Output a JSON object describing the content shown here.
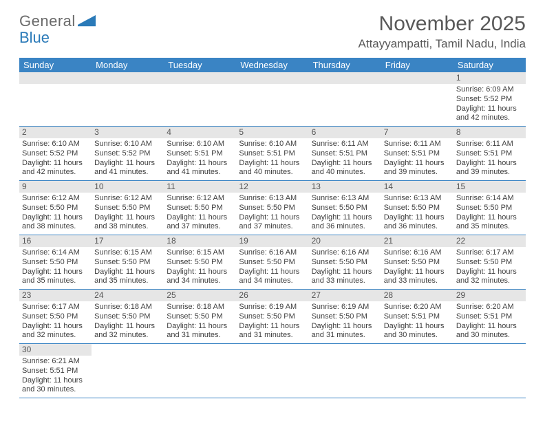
{
  "logo": {
    "word1": "General",
    "word2": "Blue"
  },
  "title": "November 2025",
  "location": "Attayyampatti, Tamil Nadu, India",
  "colors": {
    "header_bg": "#3a84c4",
    "header_text": "#ffffff",
    "daynum_bg": "#e6e6e6",
    "border": "#3a84c4",
    "title_color": "#595959",
    "body_text": "#404040"
  },
  "weekdays": [
    "Sunday",
    "Monday",
    "Tuesday",
    "Wednesday",
    "Thursday",
    "Friday",
    "Saturday"
  ],
  "first_weekday_index": 6,
  "days": [
    {
      "n": "1",
      "sr": "6:09 AM",
      "ss": "5:52 PM",
      "dl": "11 hours and 42 minutes."
    },
    {
      "n": "2",
      "sr": "6:10 AM",
      "ss": "5:52 PM",
      "dl": "11 hours and 42 minutes."
    },
    {
      "n": "3",
      "sr": "6:10 AM",
      "ss": "5:52 PM",
      "dl": "11 hours and 41 minutes."
    },
    {
      "n": "4",
      "sr": "6:10 AM",
      "ss": "5:51 PM",
      "dl": "11 hours and 41 minutes."
    },
    {
      "n": "5",
      "sr": "6:10 AM",
      "ss": "5:51 PM",
      "dl": "11 hours and 40 minutes."
    },
    {
      "n": "6",
      "sr": "6:11 AM",
      "ss": "5:51 PM",
      "dl": "11 hours and 40 minutes."
    },
    {
      "n": "7",
      "sr": "6:11 AM",
      "ss": "5:51 PM",
      "dl": "11 hours and 39 minutes."
    },
    {
      "n": "8",
      "sr": "6:11 AM",
      "ss": "5:51 PM",
      "dl": "11 hours and 39 minutes."
    },
    {
      "n": "9",
      "sr": "6:12 AM",
      "ss": "5:50 PM",
      "dl": "11 hours and 38 minutes."
    },
    {
      "n": "10",
      "sr": "6:12 AM",
      "ss": "5:50 PM",
      "dl": "11 hours and 38 minutes."
    },
    {
      "n": "11",
      "sr": "6:12 AM",
      "ss": "5:50 PM",
      "dl": "11 hours and 37 minutes."
    },
    {
      "n": "12",
      "sr": "6:13 AM",
      "ss": "5:50 PM",
      "dl": "11 hours and 37 minutes."
    },
    {
      "n": "13",
      "sr": "6:13 AM",
      "ss": "5:50 PM",
      "dl": "11 hours and 36 minutes."
    },
    {
      "n": "14",
      "sr": "6:13 AM",
      "ss": "5:50 PM",
      "dl": "11 hours and 36 minutes."
    },
    {
      "n": "15",
      "sr": "6:14 AM",
      "ss": "5:50 PM",
      "dl": "11 hours and 35 minutes."
    },
    {
      "n": "16",
      "sr": "6:14 AM",
      "ss": "5:50 PM",
      "dl": "11 hours and 35 minutes."
    },
    {
      "n": "17",
      "sr": "6:15 AM",
      "ss": "5:50 PM",
      "dl": "11 hours and 35 minutes."
    },
    {
      "n": "18",
      "sr": "6:15 AM",
      "ss": "5:50 PM",
      "dl": "11 hours and 34 minutes."
    },
    {
      "n": "19",
      "sr": "6:16 AM",
      "ss": "5:50 PM",
      "dl": "11 hours and 34 minutes."
    },
    {
      "n": "20",
      "sr": "6:16 AM",
      "ss": "5:50 PM",
      "dl": "11 hours and 33 minutes."
    },
    {
      "n": "21",
      "sr": "6:16 AM",
      "ss": "5:50 PM",
      "dl": "11 hours and 33 minutes."
    },
    {
      "n": "22",
      "sr": "6:17 AM",
      "ss": "5:50 PM",
      "dl": "11 hours and 32 minutes."
    },
    {
      "n": "23",
      "sr": "6:17 AM",
      "ss": "5:50 PM",
      "dl": "11 hours and 32 minutes."
    },
    {
      "n": "24",
      "sr": "6:18 AM",
      "ss": "5:50 PM",
      "dl": "11 hours and 32 minutes."
    },
    {
      "n": "25",
      "sr": "6:18 AM",
      "ss": "5:50 PM",
      "dl": "11 hours and 31 minutes."
    },
    {
      "n": "26",
      "sr": "6:19 AM",
      "ss": "5:50 PM",
      "dl": "11 hours and 31 minutes."
    },
    {
      "n": "27",
      "sr": "6:19 AM",
      "ss": "5:50 PM",
      "dl": "11 hours and 31 minutes."
    },
    {
      "n": "28",
      "sr": "6:20 AM",
      "ss": "5:51 PM",
      "dl": "11 hours and 30 minutes."
    },
    {
      "n": "29",
      "sr": "6:20 AM",
      "ss": "5:51 PM",
      "dl": "11 hours and 30 minutes."
    },
    {
      "n": "30",
      "sr": "6:21 AM",
      "ss": "5:51 PM",
      "dl": "11 hours and 30 minutes."
    }
  ],
  "labels": {
    "sunrise": "Sunrise:",
    "sunset": "Sunset:",
    "daylight": "Daylight:"
  }
}
